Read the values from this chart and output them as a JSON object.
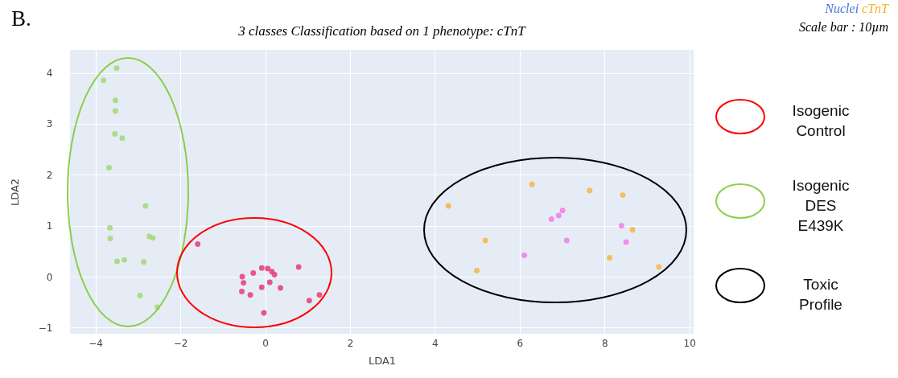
{
  "chart_data": {
    "type": "scatter",
    "title": "3 classes Classification based on 1 phenotype: cTnT",
    "xlabel": "LDA1",
    "ylabel": "LDA2",
    "annotations": [
      "B.",
      "Nuclei cTnT",
      "Scale bar : 10µm",
      "Isogenic Control",
      "Isogenic DES E439K",
      "Toxic Profile"
    ],
    "xlim": [
      -4.6,
      10.1
    ],
    "ylim": [
      -1.12,
      4.45
    ],
    "xticks": [
      -4,
      -2,
      0,
      2,
      4,
      6,
      8,
      10
    ],
    "yticks": [
      -1,
      0,
      1,
      2,
      3,
      4
    ],
    "grid": true,
    "marker": "circle",
    "series": [
      {
        "color": "#a6d97c",
        "x": [
          -3.5,
          -3.81,
          -3.53,
          -3.53,
          -3.54,
          -3.37,
          -3.68,
          -2.82,
          -3.66,
          -3.65,
          -2.73,
          -2.65,
          -3.49,
          -3.32,
          -2.86,
          -2.95,
          -2.54
        ],
        "values": [
          4.09,
          3.85,
          3.46,
          3.25,
          2.8,
          2.72,
          2.14,
          1.39,
          0.96,
          0.75,
          0.79,
          0.76,
          0.3,
          0.33,
          0.29,
          -0.37,
          -0.6
        ]
      },
      {
        "color": "#e8457d",
        "x": [
          -1.59,
          -0.54,
          -0.51,
          -0.55,
          -0.35,
          -0.28,
          -0.08,
          0.06,
          0.16,
          0.22,
          0.11,
          -0.08,
          0.36,
          0.79,
          1.04,
          1.28,
          -0.03
        ],
        "values": [
          0.64,
          0.0,
          -0.12,
          -0.29,
          -0.36,
          0.07,
          0.17,
          0.16,
          0.1,
          0.04,
          -0.11,
          -0.21,
          -0.22,
          0.19,
          -0.47,
          -0.36,
          -0.71
        ]
      },
      {
        "color": "#f4b94e",
        "x": [
          4.32,
          6.29,
          7.65,
          8.43,
          5.19,
          4.99,
          8.66,
          8.12,
          9.28
        ],
        "values": [
          1.39,
          1.81,
          1.69,
          1.6,
          0.71,
          0.12,
          0.92,
          0.37,
          0.19
        ]
      },
      {
        "color": "#f283e6",
        "x": [
          6.75,
          6.92,
          7.01,
          7.11,
          6.11,
          8.4,
          8.51
        ],
        "values": [
          1.13,
          1.2,
          1.3,
          0.71,
          0.42,
          1.0,
          0.68
        ]
      }
    ]
  }
}
